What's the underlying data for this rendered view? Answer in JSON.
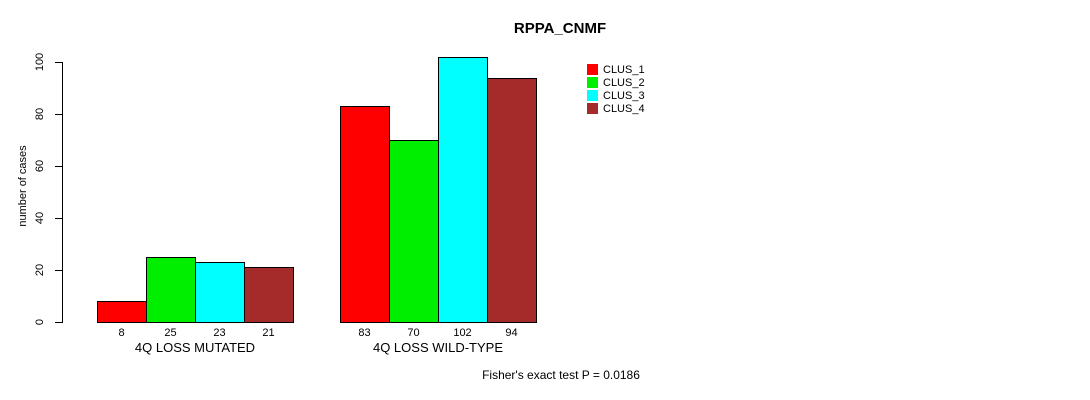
{
  "title": "RPPA_CNMF",
  "footer": {
    "text": "Fisher's exact test P = 0.0186"
  },
  "chart_data": {
    "type": "bar",
    "title": "RPPA_CNMF",
    "categories": [
      "4Q LOSS MUTATED",
      "4Q LOSS WILD-TYPE"
    ],
    "series": [
      {
        "name": "CLUS_1",
        "color": "#FF0000",
        "values": [
          8,
          83
        ]
      },
      {
        "name": "CLUS_2",
        "color": "#00EE00",
        "values": [
          25,
          70
        ]
      },
      {
        "name": "CLUS_3",
        "color": "#00FFFF",
        "values": [
          23,
          102
        ]
      },
      {
        "name": "CLUS_4",
        "color": "#A52A2A",
        "values": [
          21,
          94
        ]
      }
    ],
    "xlabel": "",
    "ylabel": "number of cases",
    "yticks": [
      0,
      20,
      40,
      60,
      80,
      100
    ],
    "ylim": [
      0,
      105
    ],
    "show_values": true,
    "grid": false,
    "legend_position": "right-of-plot",
    "annotation": "Fisher's exact test P = 0.0186"
  }
}
